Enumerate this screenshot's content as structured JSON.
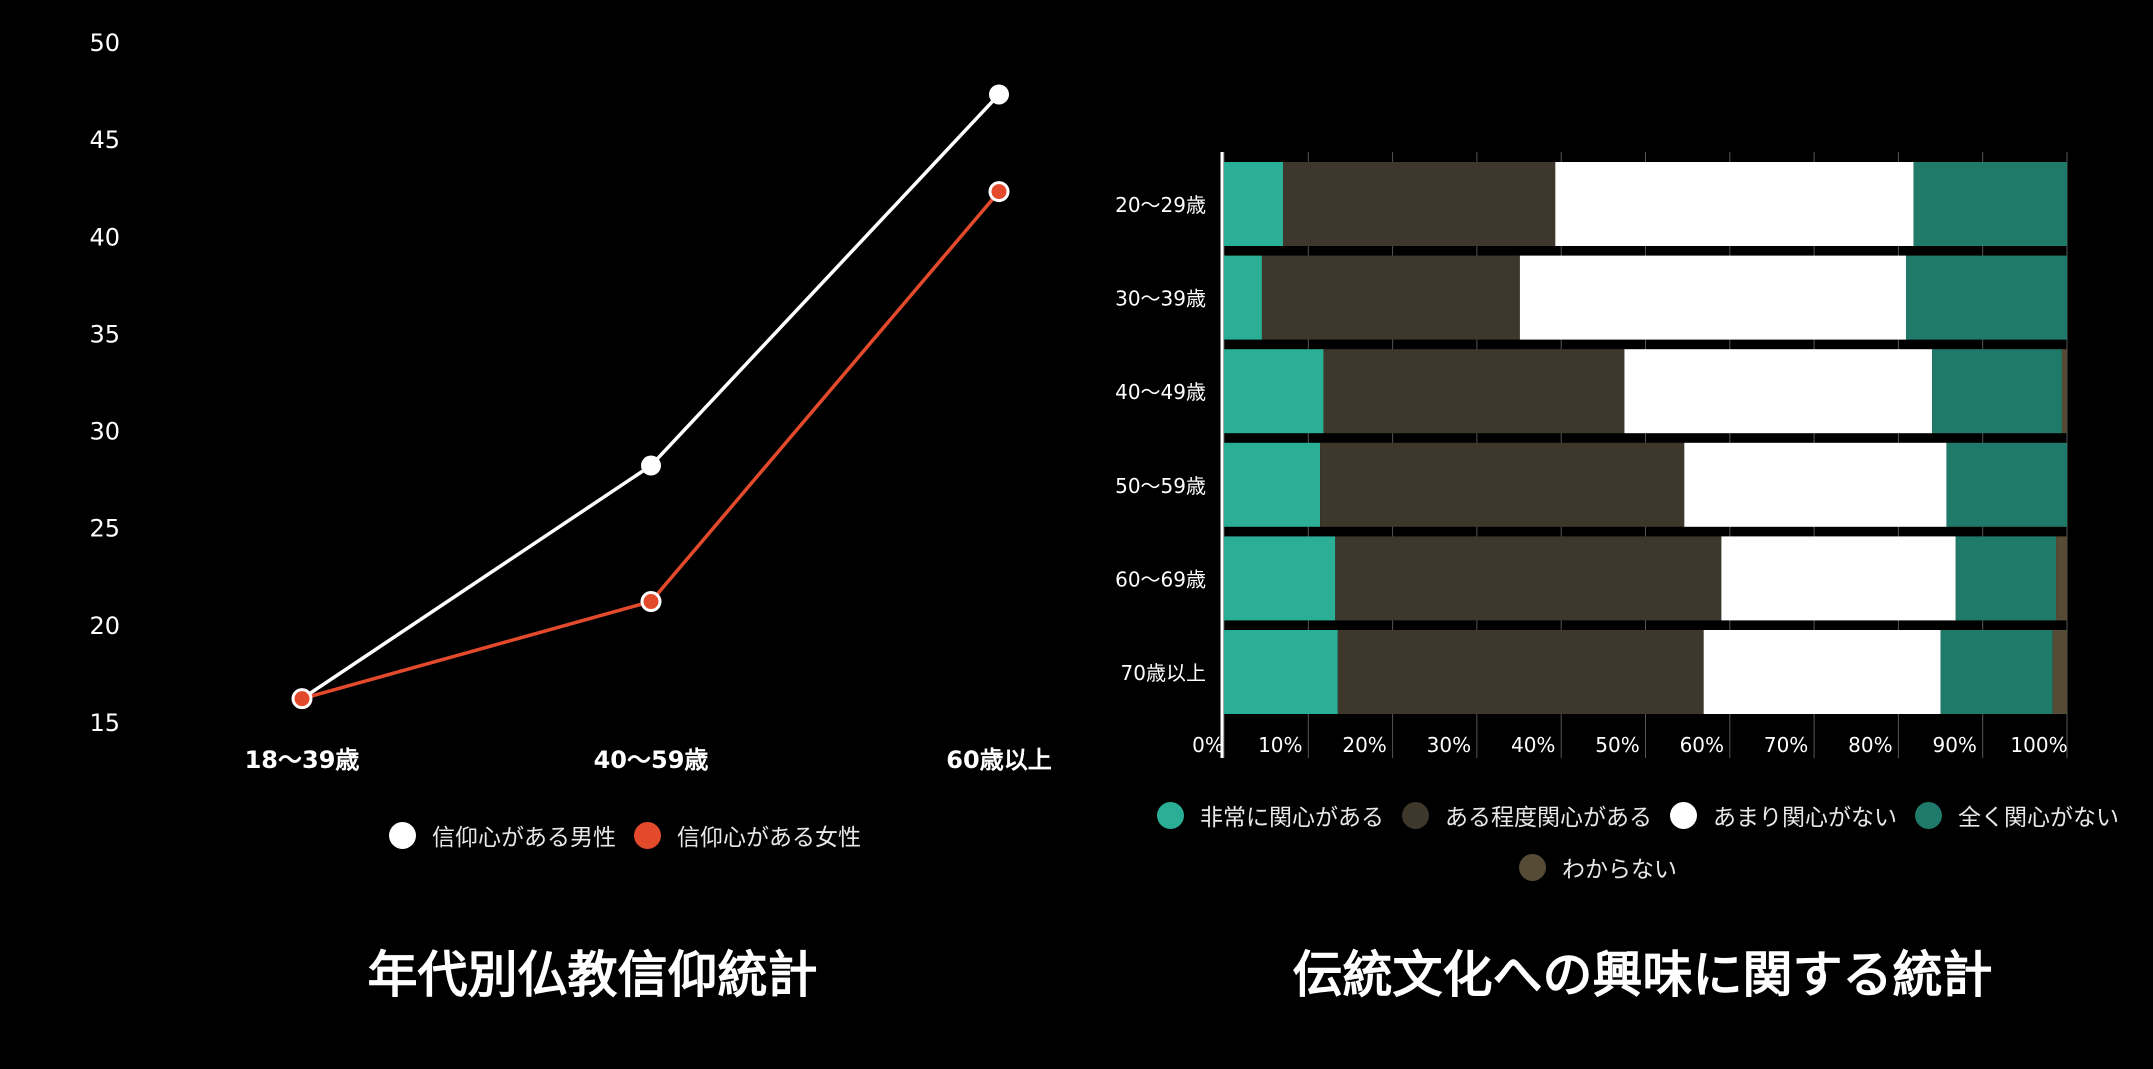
{
  "colors": {
    "male": "#ffffff",
    "female": "#e34a2b",
    "very": "#2aae96",
    "some": "#3d372c",
    "little": "#ffffff",
    "none": "#1f7a6a",
    "unknown": "#564b35"
  },
  "left_chart": {
    "title": "年代別仏教信仰統計",
    "legend": [
      "信仰心がある男性",
      "信仰心がある女性"
    ]
  },
  "right_chart": {
    "title": "伝統文化への興味に関する統計",
    "legend": [
      "非常に関心がある",
      "ある程度関心がある",
      "あまり関心がない",
      "全く関心がない",
      "わからない"
    ]
  },
  "chart_data": [
    {
      "type": "line",
      "title": "年代別仏教信仰統計",
      "categories": [
        "18〜39歳",
        "40〜59歳",
        "60歳以上"
      ],
      "yticks": [
        15,
        20,
        25,
        30,
        35,
        40,
        45,
        50
      ],
      "ylim": [
        15,
        50
      ],
      "grid": false,
      "legend_position": "bottom",
      "series": [
        {
          "name": "信仰心がある男性",
          "values": [
            16.2,
            28.2,
            47.3
          ]
        },
        {
          "name": "信仰心がある女性",
          "values": [
            16.2,
            21.2,
            42.3
          ]
        }
      ]
    },
    {
      "type": "bar",
      "orientation": "horizontal",
      "stacked": true,
      "title": "伝統文化への興味に関する統計",
      "categories": [
        "20〜29歳",
        "30〜39歳",
        "40〜49歳",
        "50〜59歳",
        "60〜69歳",
        "70歳以上"
      ],
      "xticks": [
        "0%",
        "10%",
        "20%",
        "30%",
        "40%",
        "50%",
        "60%",
        "70%",
        "80%",
        "90%",
        "100%"
      ],
      "xlim": [
        0,
        100
      ],
      "grid": true,
      "legend_position": "bottom",
      "series": [
        {
          "name": "非常に関心がある",
          "values": [
            7.0,
            4.5,
            11.8,
            11.4,
            13.2,
            13.5
          ]
        },
        {
          "name": "ある程度関心がある",
          "values": [
            32.3,
            30.6,
            35.7,
            43.2,
            45.8,
            43.4
          ]
        },
        {
          "name": "あまり関心がない",
          "values": [
            42.5,
            45.8,
            36.5,
            31.1,
            27.8,
            28.1
          ]
        },
        {
          "name": "全く関心がない",
          "values": [
            18.2,
            19.1,
            15.4,
            14.3,
            11.9,
            13.3
          ]
        },
        {
          "name": "わからない",
          "values": [
            0.0,
            0.0,
            0.6,
            0.0,
            1.3,
            1.7
          ]
        }
      ]
    }
  ]
}
